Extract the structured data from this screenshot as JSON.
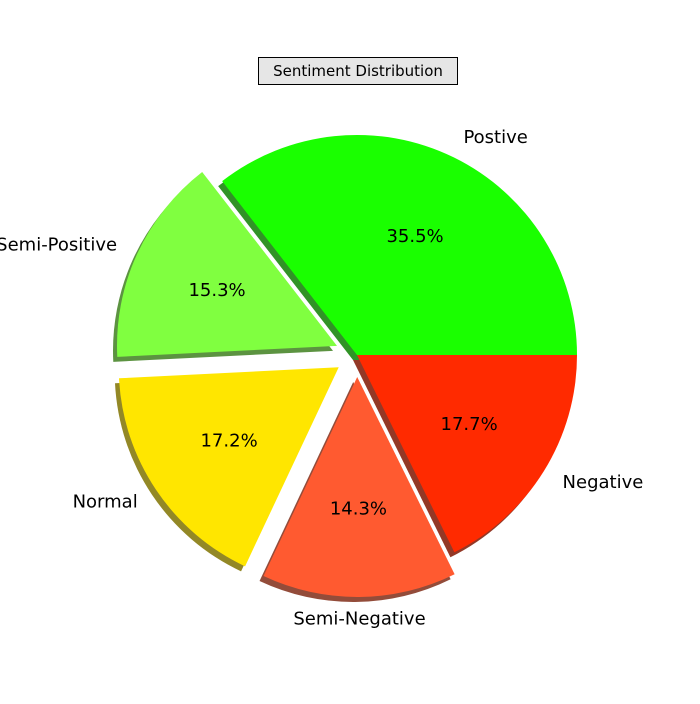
{
  "chart_data": {
    "type": "pie",
    "title": "Sentiment Distribution",
    "slices": [
      {
        "label": "Postive",
        "value": 35.5,
        "pct_label": "35.5%",
        "color": "#1aff00",
        "exploded": false
      },
      {
        "label": "Semi-Positive",
        "value": 15.3,
        "pct_label": "15.3%",
        "color": "#80ff40",
        "exploded": true
      },
      {
        "label": "Normal",
        "value": 17.2,
        "pct_label": "17.2%",
        "color": "#ffe600",
        "exploded": true
      },
      {
        "label": "Semi-Negative",
        "value": 14.3,
        "pct_label": "14.3%",
        "color": "#ff5a30",
        "exploded": true
      },
      {
        "label": "Negative",
        "value": 17.7,
        "pct_label": "17.7%",
        "color": "#ff2a00",
        "exploded": false
      }
    ],
    "start_angle_deg": 0,
    "direction": "counterclockwise",
    "shadow": true
  }
}
